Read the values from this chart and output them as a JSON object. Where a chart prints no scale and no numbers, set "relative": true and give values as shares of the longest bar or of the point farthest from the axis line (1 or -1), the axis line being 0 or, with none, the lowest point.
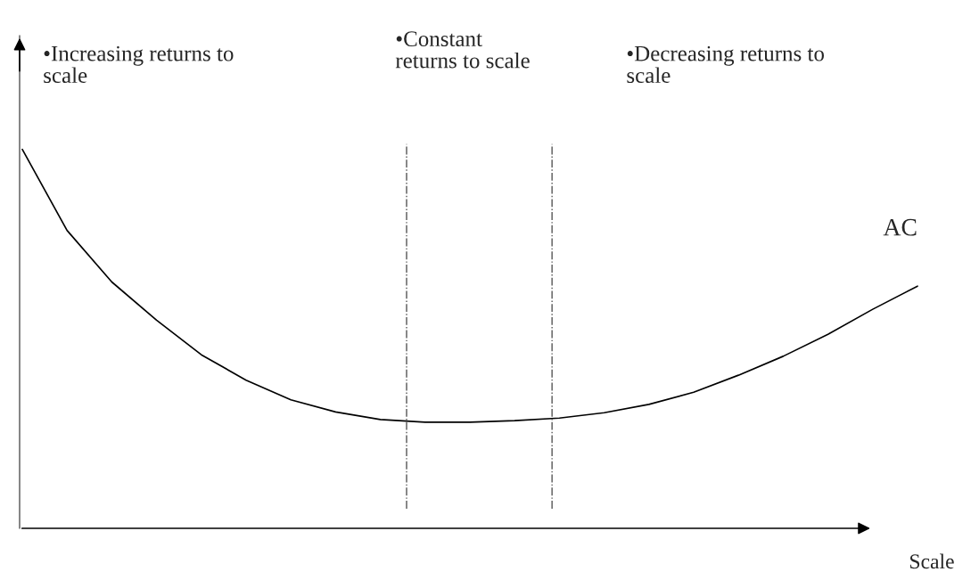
{
  "chart_data": {
    "type": "line",
    "relative": true,
    "xlabel": "Scale",
    "categories": [
      null,
      null,
      null,
      null,
      null,
      null,
      null,
      null,
      null,
      null,
      null,
      null,
      null,
      null,
      null,
      null,
      null,
      null,
      null,
      null,
      null
    ],
    "series": [
      {
        "name": "AC",
        "color": "#000000",
        "values": [
          1,
          0.786,
          0.65,
          0.549,
          0.458,
          0.391,
          0.339,
          0.307,
          0.287,
          0.28,
          0.28,
          0.284,
          0.291,
          0.305,
          0.327,
          0.359,
          0.404,
          0.454,
          0.512,
          0.578,
          0.639
        ]
      }
    ],
    "annotations": [
      "•Increasing returns to\nscale",
      "•Constant\nreturns to scale",
      "•Decreasing returns to\nscale"
    ],
    "legend": false
  }
}
